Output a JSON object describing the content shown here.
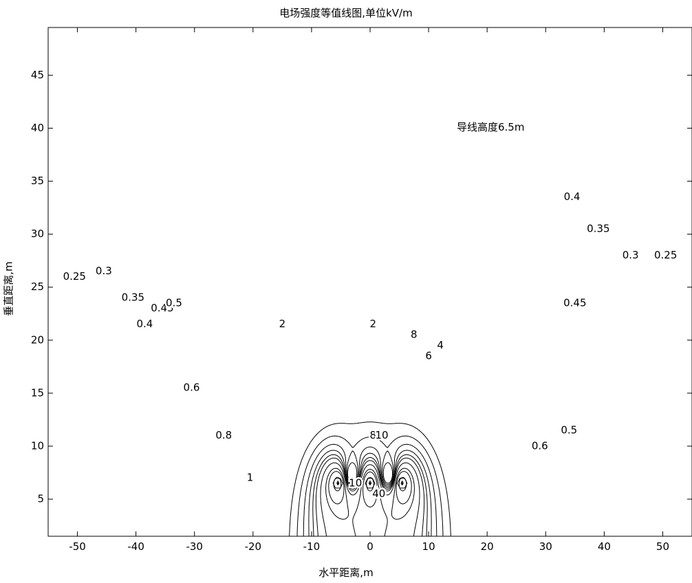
{
  "chart_data": {
    "type": "contour",
    "title": "电场强度等值线图,单位kV/m",
    "xlabel": "水平距离,m",
    "ylabel": "垂直距离,m",
    "xlim": [
      -55,
      55
    ],
    "ylim": [
      1.5,
      49.5
    ],
    "x_ticks": [
      -50,
      -40,
      -30,
      -20,
      -10,
      0,
      10,
      20,
      30,
      40,
      50
    ],
    "y_ticks": [
      5,
      10,
      15,
      20,
      25,
      30,
      35,
      40,
      45
    ],
    "annotation": "导线高度6.5m",
    "grid": false,
    "contour_levels": [
      0.25,
      0.3,
      0.35,
      0.4,
      0.45,
      0.5,
      0.6,
      0.8,
      1,
      2,
      4,
      6,
      8,
      10,
      40
    ],
    "conductors": [
      {
        "x": -5.5,
        "y": 6.5
      },
      {
        "x": 0,
        "y": 6.5
      },
      {
        "x": 5.5,
        "y": 6.5
      }
    ],
    "contour_labels": [
      {
        "text": "0.25",
        "x": -50.5,
        "y": 26
      },
      {
        "text": "0.3",
        "x": -45.5,
        "y": 26.5
      },
      {
        "text": "0.35",
        "x": -40.5,
        "y": 24
      },
      {
        "text": "0.4",
        "x": -38.5,
        "y": 21.5
      },
      {
        "text": "0.45",
        "x": -35.5,
        "y": 23
      },
      {
        "text": "0.5",
        "x": -33.5,
        "y": 23.5
      },
      {
        "text": "0.6",
        "x": -30.5,
        "y": 15.5
      },
      {
        "text": "0.8",
        "x": -25,
        "y": 11
      },
      {
        "text": "1",
        "x": -20.5,
        "y": 7
      },
      {
        "text": "2",
        "x": -15,
        "y": 21.5
      },
      {
        "text": "2",
        "x": 0.5,
        "y": 21.5
      },
      {
        "text": "8",
        "x": 7.5,
        "y": 20.5
      },
      {
        "text": "4",
        "x": 12,
        "y": 19.5
      },
      {
        "text": "6",
        "x": 10,
        "y": 18.5
      },
      {
        "text": "8",
        "x": 0.5,
        "y": 11
      },
      {
        "text": "10",
        "x": 2,
        "y": 11
      },
      {
        "text": "10",
        "x": -2.5,
        "y": 6.5
      },
      {
        "text": "40",
        "x": 1.5,
        "y": 5.5
      },
      {
        "text": "0.4",
        "x": 34.5,
        "y": 33.5
      },
      {
        "text": "0.35",
        "x": 39,
        "y": 30.5
      },
      {
        "text": "0.3",
        "x": 44.5,
        "y": 28
      },
      {
        "text": "0.25",
        "x": 50.5,
        "y": 28
      },
      {
        "text": "0.45",
        "x": 35,
        "y": 23.5
      },
      {
        "text": "0.5",
        "x": 34,
        "y": 11.5
      },
      {
        "text": "0.6",
        "x": 29,
        "y": 10
      }
    ]
  }
}
